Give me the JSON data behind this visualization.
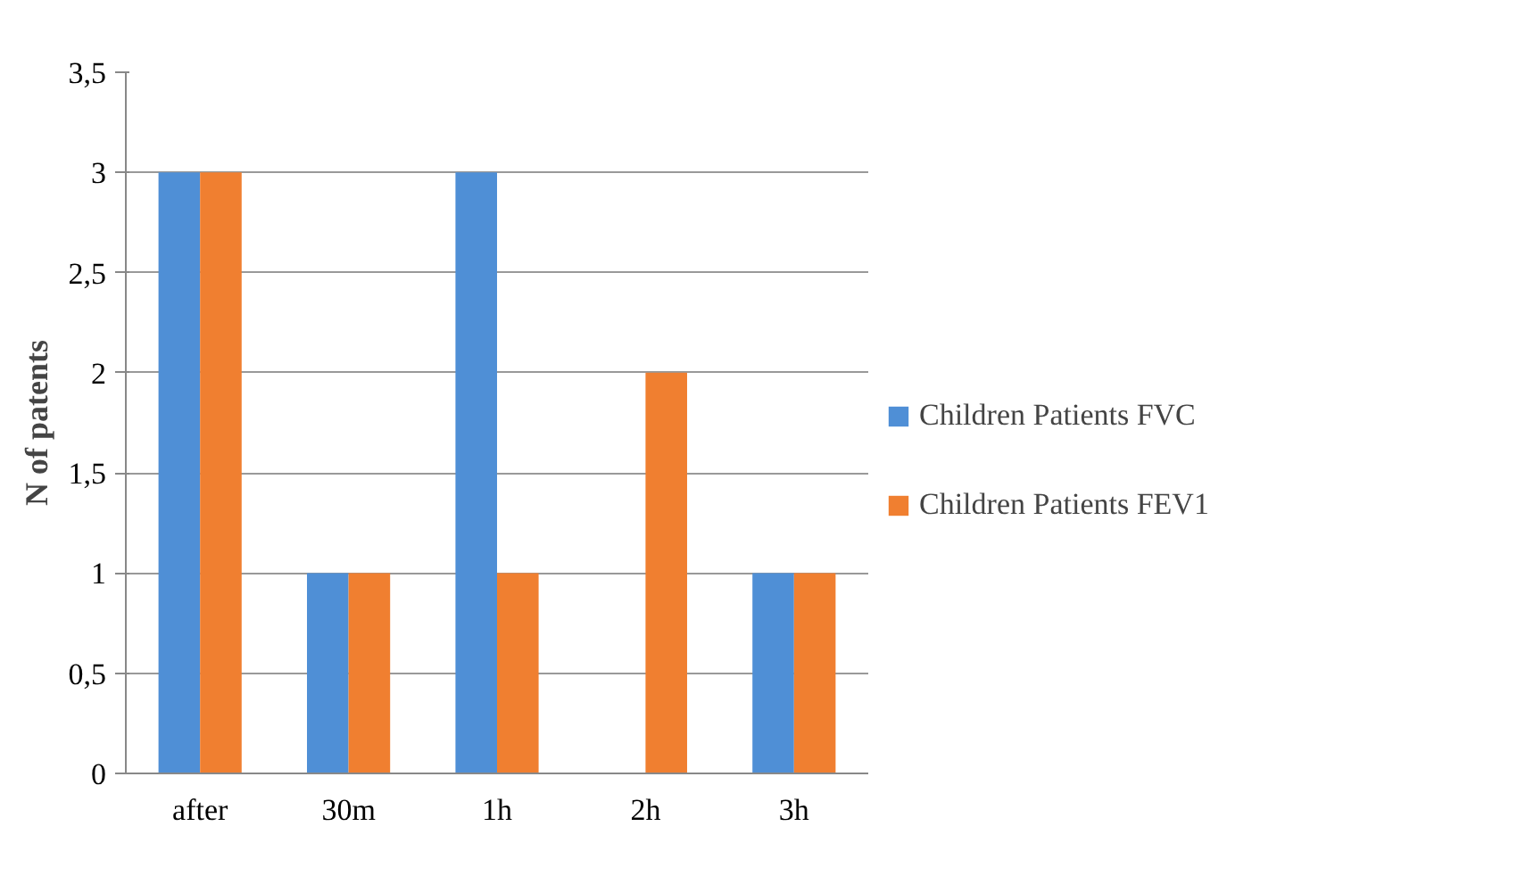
{
  "chart_data": {
    "type": "bar",
    "ylabel": "N of patents",
    "categories": [
      "after",
      "30m",
      "1h",
      "2h",
      "3h"
    ],
    "series": [
      {
        "name": "Children Patients FVC",
        "color": "#4f8fd6",
        "values": [
          3,
          1,
          3,
          0,
          1
        ]
      },
      {
        "name": "Children Patients FEV1",
        "color": "#f07f30",
        "values": [
          3,
          1,
          1,
          2,
          1
        ]
      }
    ],
    "ylim": [
      0,
      3.5
    ],
    "yticks": [
      0,
      {
        "value": 0.5,
        "label": "0,5"
      },
      1,
      {
        "value": 1.5,
        "label": "1,5"
      },
      2,
      {
        "value": 2.5,
        "label": "2,5"
      },
      3,
      {
        "value": 3.5,
        "label": "3,5"
      }
    ],
    "grid": "y",
    "legend": "right"
  }
}
